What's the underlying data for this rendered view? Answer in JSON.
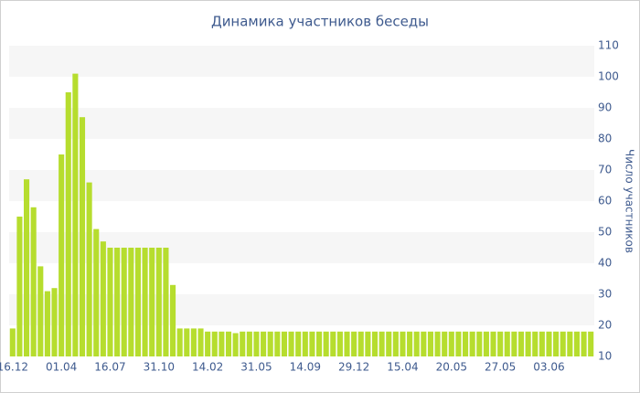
{
  "chart_data": {
    "type": "bar",
    "title": "Динамика участников беседы",
    "y_label": "Число участников",
    "categories": [
      "16.12",
      null,
      null,
      null,
      null,
      null,
      null,
      "01.04",
      null,
      null,
      null,
      null,
      null,
      null,
      "16.07",
      null,
      null,
      null,
      null,
      null,
      null,
      "31.10",
      null,
      null,
      null,
      null,
      null,
      null,
      "14.02",
      null,
      null,
      null,
      null,
      null,
      null,
      "31.05",
      null,
      null,
      null,
      null,
      null,
      null,
      "14.09",
      null,
      null,
      null,
      null,
      null,
      null,
      "29.12",
      null,
      null,
      null,
      null,
      null,
      null,
      "15.04",
      null,
      null,
      null,
      null,
      null,
      null,
      "20.05",
      null,
      null,
      null,
      null,
      null,
      null,
      "27.05",
      null,
      null,
      null,
      null,
      null,
      null,
      "03.06",
      null,
      null,
      null,
      null,
      null,
      null
    ],
    "values": [
      19,
      55,
      67,
      58,
      39,
      31,
      32,
      75,
      95,
      101,
      87,
      66,
      51,
      47,
      45,
      45,
      45,
      45,
      45,
      45,
      45,
      45,
      45,
      33,
      19,
      19,
      19,
      19,
      18,
      18,
      18,
      18,
      17.5,
      18,
      18,
      18,
      18,
      18,
      18,
      18,
      18,
      18,
      18,
      18,
      18,
      18,
      18,
      18,
      18,
      18,
      18,
      18,
      18,
      18,
      18,
      18,
      18,
      18,
      18,
      18,
      18,
      18,
      18,
      18,
      18,
      18,
      18,
      18,
      18,
      18,
      18,
      18,
      18,
      18,
      18,
      18,
      18,
      18,
      18,
      18,
      18,
      18,
      18,
      18
    ],
    "color": "#b6dd2e",
    "ylim": [
      10,
      110
    ],
    "yticks": [
      10,
      20,
      30,
      40,
      50,
      60,
      70,
      80,
      90,
      100,
      110
    ],
    "grid": true
  }
}
